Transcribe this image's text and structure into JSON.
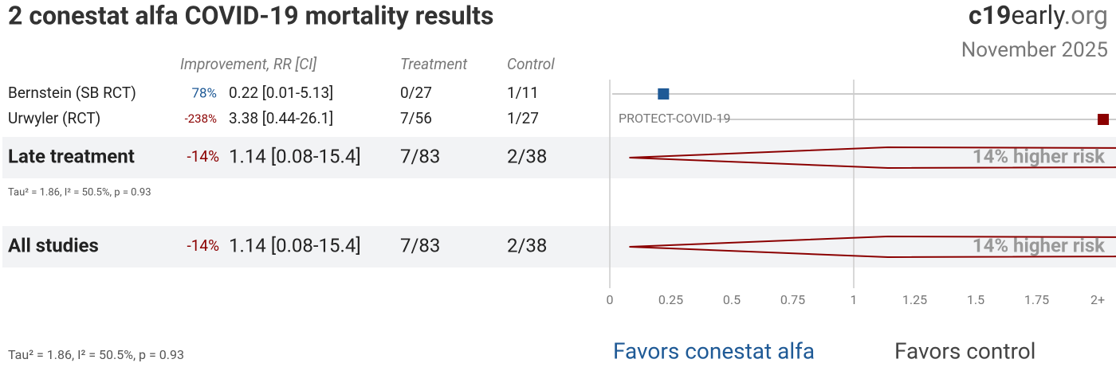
{
  "header": {
    "title": "2 conestat alfa COVID-19 mortality results",
    "logo": [
      "c19",
      "early",
      ".org"
    ],
    "date": "November 2025"
  },
  "chart_data": {
    "type": "forest",
    "columns": [
      "Improvement, RR [CI]",
      "Treatment",
      "Control"
    ],
    "rows": [
      {
        "name": "Bernstein (SB RCT)",
        "improvement": "78%",
        "rr_text": "0.22 [0.01-5.13]",
        "treatment": "0/27",
        "control": "1/11",
        "rr": 0.22,
        "ci": [
          0.01,
          5.13
        ],
        "color": "#1f5a96"
      },
      {
        "name": "Urwyler (RCT)",
        "improvement": "-238%",
        "rr_text": "3.38 [0.44-26.1]",
        "treatment": "7/56",
        "control": "1/27",
        "rr": 3.38,
        "ci": [
          0.44,
          26.1
        ],
        "color": "#8b0000",
        "annotation": "PROTECT-COVID-19"
      }
    ],
    "summaries": [
      {
        "name": "Late treatment",
        "improvement": "-14%",
        "rr_text": "1.14 [0.08-15.4]",
        "treatment": "7/83",
        "control": "2/38",
        "rr": 1.14,
        "ci": [
          0.08,
          15.4
        ],
        "color": "#8b0000",
        "label": "14% higher risk",
        "heterogeneity": "Tau² = 1.86, I² = 50.5%, p = 0.93"
      },
      {
        "name": "All studies",
        "improvement": "-14%",
        "rr_text": "1.14 [0.08-15.4]",
        "treatment": "7/83",
        "control": "2/38",
        "rr": 1.14,
        "ci": [
          0.08,
          15.4
        ],
        "color": "#8b0000",
        "label": "14% higher risk"
      }
    ],
    "heterogeneity": "Tau² = 1.86, I² = 50.5%, p = 0.93",
    "xlim": [
      0,
      2
    ],
    "xticks": [
      0,
      0.25,
      0.5,
      0.75,
      1,
      1.25,
      1.5,
      1.75,
      {
        "value": 2,
        "label": "2+"
      }
    ],
    "reference_lines": [
      0,
      1
    ],
    "favors": [
      "Favors conestat alfa",
      "Favors control"
    ],
    "favors_colors": [
      "#1f5a96",
      "#444444"
    ]
  }
}
